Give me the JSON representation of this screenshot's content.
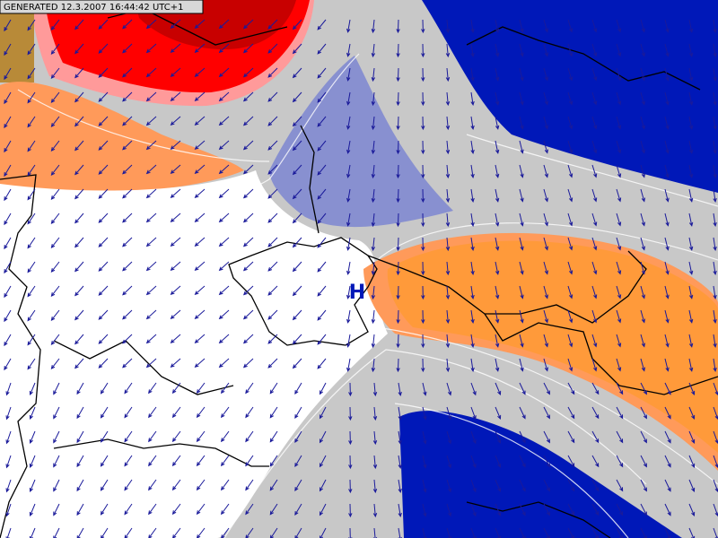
{
  "header": {
    "generated": "GENERATED 12.3.2007 16:44:42 UTC+1"
  },
  "labels": {
    "pressure_center": "H"
  }
}
